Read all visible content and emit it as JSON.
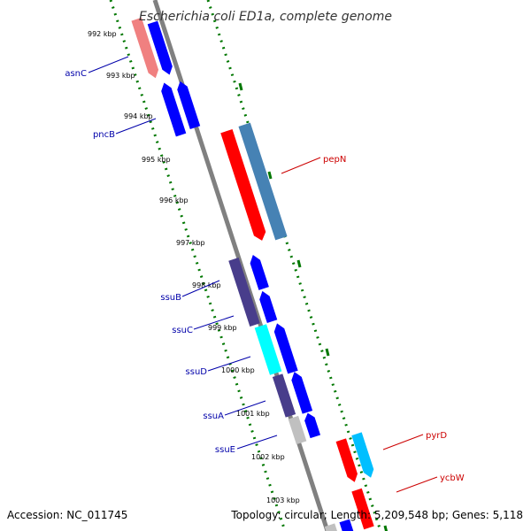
{
  "title": "Escherichia coli ED1a, complete genome",
  "footer": {
    "accession": "Accession: NC_011745",
    "summary": "Topology: circular; Length: 5,209,548 bp; Genes: 5,118"
  },
  "scale_labels": [
    "992 kbp",
    "993 kbp",
    "994 kbp",
    "995 kbp",
    "996 kbp",
    "997 kbp",
    "998 kbp",
    "999 kbp",
    "1000 kbp",
    "1001 kbp",
    "1002 kbp",
    "1003 kbp"
  ],
  "genes": [
    {
      "name": "asnC",
      "color": "#0000aa"
    },
    {
      "name": "pncB",
      "color": "#0000aa"
    },
    {
      "name": "pepN",
      "color": "#cc0000"
    },
    {
      "name": "ssuB",
      "color": "#0000aa"
    },
    {
      "name": "ssuC",
      "color": "#0000aa"
    },
    {
      "name": "ssuD",
      "color": "#0000aa"
    },
    {
      "name": "ssuA",
      "color": "#0000aa"
    },
    {
      "name": "ssuE",
      "color": "#0000aa"
    },
    {
      "name": "pyrD",
      "color": "#cc0000"
    },
    {
      "name": "ycbW",
      "color": "#cc0000"
    }
  ],
  "colors": {
    "backbone": "#808080",
    "scale_ticks": "#007700",
    "cds_forward": "#ff0000",
    "cds_reverse": "#0000ff",
    "pink": "#f08080",
    "steelblue": "#4682b4",
    "darkslate": "#483d8b",
    "cyan": "#00ffff",
    "lightcyan": "#00bfff",
    "grey": "#c0c0c0"
  }
}
